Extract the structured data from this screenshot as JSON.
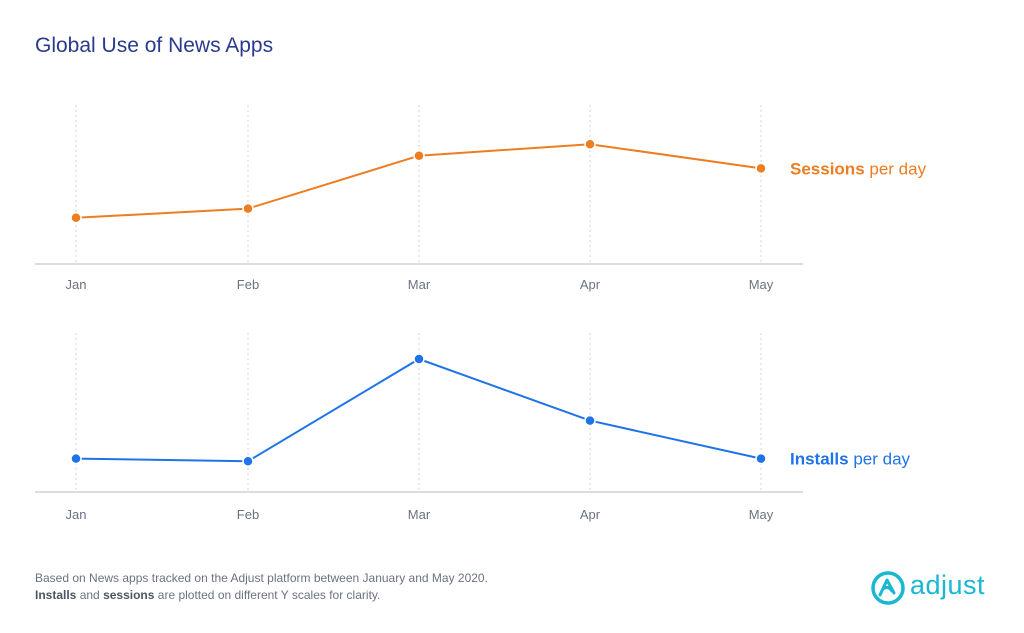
{
  "title": "Global Use of News Apps",
  "colors": {
    "sessions": "#ee7d22",
    "installs": "#1f73e8",
    "title": "#2a3b8f",
    "logo": "#18b7d2"
  },
  "chart_data": [
    {
      "type": "line",
      "categories": [
        "Jan",
        "Feb",
        "Mar",
        "Apr",
        "May"
      ],
      "series": [
        {
          "name": "Sessions",
          "values": [
            28,
            36,
            82,
            92,
            71
          ]
        }
      ],
      "legend": {
        "bold": "Sessions",
        "rest": " per day",
        "placement": "right"
      },
      "ylim": [
        0,
        100
      ],
      "grid": "vertical-dotted"
    },
    {
      "type": "line",
      "categories": [
        "Jan",
        "Feb",
        "Mar",
        "Apr",
        "May"
      ],
      "series": [
        {
          "name": "Installs",
          "values": [
            24,
            22,
            100,
            53,
            24
          ]
        }
      ],
      "legend": {
        "bold": "Installs",
        "rest": " per day",
        "placement": "right"
      },
      "ylim": [
        0,
        100
      ],
      "grid": "vertical-dotted"
    }
  ],
  "footnote": {
    "line1": "Based on News apps tracked on the Adjust platform between January and May 2020.",
    "line2_b1": "Installs",
    "line2_m": " and ",
    "line2_b2": "sessions",
    "line2_rest": " are plotted on different Y scales for clarity."
  },
  "logo": {
    "text": "adjust",
    "icon": "adjust-logo-icon"
  }
}
